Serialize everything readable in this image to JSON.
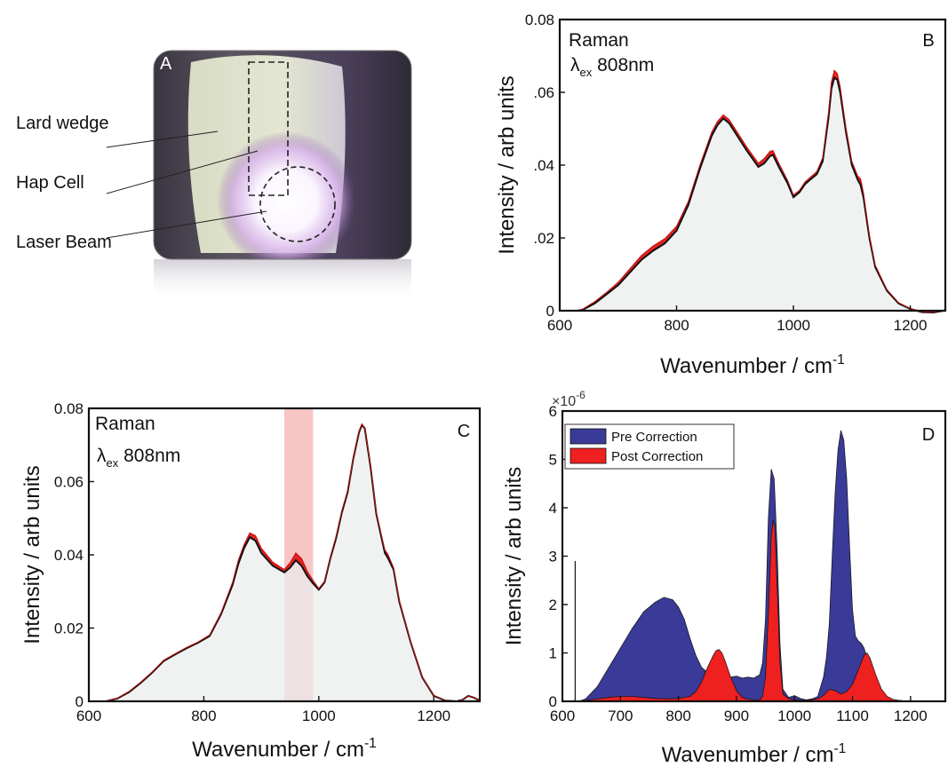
{
  "panel_a": {
    "letter": "A",
    "labels": [
      "Lard wedge",
      "Hap Cell",
      "Laser Beam"
    ]
  },
  "chart_data": [
    {
      "panel": "B",
      "type": "area",
      "annotation": [
        "Raman",
        "λ",
        "ex",
        " 808nm"
      ],
      "xlabel": "Wavenumber / cm",
      "xlabel_sup": "-1",
      "ylabel": "Intensity / arb units",
      "xlim": [
        600,
        1260
      ],
      "ylim": [
        0,
        0.08
      ],
      "xticks": [
        600,
        800,
        1000,
        1200
      ],
      "xtick_labels": [
        "600",
        "800",
        "1000",
        "1200"
      ],
      "yticks": [
        0,
        0.02,
        0.04,
        0.06,
        0.08
      ],
      "ytick_labels": [
        "0",
        ".02",
        ".04",
        ".06",
        "0.08"
      ],
      "x": [
        630,
        640,
        660,
        680,
        700,
        720,
        740,
        760,
        780,
        800,
        820,
        840,
        860,
        870,
        880,
        890,
        900,
        920,
        940,
        950,
        960,
        965,
        975,
        990,
        1000,
        1010,
        1020,
        1030,
        1040,
        1050,
        1060,
        1065,
        1070,
        1075,
        1080,
        1090,
        1100,
        1110,
        1115,
        1120,
        1130,
        1140,
        1160,
        1180,
        1200,
        1220,
        1240,
        1260
      ],
      "series": [
        {
          "values": [
            0,
            0.0003,
            0.002,
            0.0045,
            0.007,
            0.0105,
            0.014,
            0.0165,
            0.0185,
            0.022,
            0.029,
            0.039,
            0.048,
            0.051,
            0.0528,
            0.0515,
            0.049,
            0.044,
            0.0395,
            0.0405,
            0.0425,
            0.0428,
            0.0395,
            0.035,
            0.0312,
            0.0325,
            0.0348,
            0.0362,
            0.0375,
            0.041,
            0.053,
            0.061,
            0.064,
            0.0635,
            0.06,
            0.049,
            0.04,
            0.036,
            0.0345,
            0.031,
            0.02,
            0.012,
            0.0055,
            0.002,
            0.0005,
            -0.0004,
            -0.0005,
            0.0001
          ]
        },
        {
          "values": [
            0,
            0.0005,
            0.0025,
            0.005,
            0.0078,
            0.0115,
            0.0152,
            0.0178,
            0.0198,
            0.0232,
            0.03,
            0.04,
            0.049,
            0.052,
            0.0538,
            0.0525,
            0.05,
            0.045,
            0.0405,
            0.0418,
            0.0438,
            0.044,
            0.0405,
            0.0358,
            0.0318,
            0.033,
            0.0354,
            0.0368,
            0.0382,
            0.042,
            0.0545,
            0.0628,
            0.066,
            0.0652,
            0.0615,
            0.0502,
            0.041,
            0.037,
            0.0362,
            0.0322,
            0.0208,
            0.0125,
            0.0058,
            0.0022,
            0.0006,
            -0.0003,
            -0.0004,
            0.0002
          ]
        }
      ]
    },
    {
      "panel": "C",
      "type": "area",
      "annotation": [
        "Raman",
        "λ",
        "ex",
        " 808nm"
      ],
      "xlabel": "Wavenumber / cm",
      "xlabel_sup": "-1",
      "ylabel": "Intensity / arb units",
      "xlim": [
        600,
        1280
      ],
      "ylim": [
        0,
        0.08
      ],
      "xticks": [
        600,
        800,
        1000,
        1200
      ],
      "xtick_labels": [
        "600",
        "800",
        "1000",
        "1200"
      ],
      "yticks": [
        0,
        0.02,
        0.04,
        0.06,
        0.08
      ],
      "ytick_labels": [
        "0",
        "0.02",
        "0.04",
        "0.06",
        "0.08"
      ],
      "highlight_band": [
        940,
        990
      ],
      "x": [
        630,
        650,
        670,
        690,
        710,
        730,
        750,
        770,
        790,
        810,
        830,
        850,
        860,
        870,
        880,
        890,
        900,
        920,
        940,
        950,
        960,
        970,
        980,
        990,
        1000,
        1010,
        1020,
        1030,
        1040,
        1050,
        1060,
        1070,
        1075,
        1080,
        1090,
        1100,
        1110,
        1115,
        1120,
        1130,
        1140,
        1160,
        1180,
        1200,
        1220,
        1240,
        1250,
        1260,
        1270,
        1280
      ],
      "series": [
        {
          "values": [
            0,
            0.0008,
            0.0025,
            0.005,
            0.0078,
            0.011,
            0.0128,
            0.0145,
            0.016,
            0.0178,
            0.0238,
            0.0318,
            0.0375,
            0.0418,
            0.0448,
            0.0438,
            0.0405,
            0.037,
            0.0352,
            0.0365,
            0.0385,
            0.037,
            0.0342,
            0.0322,
            0.0305,
            0.0325,
            0.039,
            0.0445,
            0.0515,
            0.057,
            0.0663,
            0.0735,
            0.0755,
            0.0745,
            0.064,
            0.0512,
            0.044,
            0.0405,
            0.0392,
            0.036,
            0.0272,
            0.016,
            0.0065,
            0.0015,
            0.0002,
            0,
            0.0004,
            0.0015,
            0.001,
            0.0002
          ]
        },
        {
          "values": [
            0,
            0.0009,
            0.0027,
            0.0052,
            0.008,
            0.0112,
            0.013,
            0.0147,
            0.0162,
            0.0181,
            0.0242,
            0.0325,
            0.0385,
            0.0428,
            0.046,
            0.0452,
            0.0418,
            0.038,
            0.036,
            0.0378,
            0.0405,
            0.039,
            0.0355,
            0.033,
            0.0308,
            0.0328,
            0.0394,
            0.045,
            0.052,
            0.0575,
            0.0667,
            0.0738,
            0.0757,
            0.0747,
            0.0644,
            0.0516,
            0.0446,
            0.0413,
            0.0402,
            0.0365,
            0.0275,
            0.0162,
            0.0066,
            0.0016,
            0.0002,
            0,
            0.0004,
            0.0015,
            0.001,
            0.0002
          ]
        }
      ]
    },
    {
      "panel": "D",
      "type": "area",
      "xlabel": "Wavenumber / cm",
      "xlabel_sup": "-1",
      "ylabel": "Intensity / arb units",
      "y_multiplier": [
        "×10",
        "-6"
      ],
      "xlim": [
        600,
        1260
      ],
      "ylim": [
        0,
        6
      ],
      "xticks": [
        600,
        700,
        800,
        900,
        1000,
        1100,
        1200
      ],
      "xtick_labels": [
        "600",
        "700",
        "800",
        "900",
        "1000",
        "1100",
        "1200"
      ],
      "yticks": [
        0,
        1,
        2,
        3,
        4,
        5,
        6
      ],
      "ytick_labels": [
        "0",
        "1",
        "2",
        "3",
        "4",
        "5",
        "6"
      ],
      "legend_position": "top-left",
      "spike": {
        "x": 622,
        "y": 2.9
      },
      "series": [
        {
          "name": "Pre Correction",
          "color": "#3a3a98",
          "x": [
            628,
            640,
            660,
            680,
            700,
            720,
            740,
            760,
            775,
            790,
            800,
            810,
            820,
            830,
            840,
            850,
            860,
            870,
            880,
            890,
            900,
            910,
            920,
            930,
            940,
            945,
            950,
            955,
            960,
            965,
            970,
            975,
            980,
            990,
            1000,
            1010,
            1020,
            1030,
            1040,
            1050,
            1055,
            1060,
            1065,
            1070,
            1075,
            1080,
            1085,
            1090,
            1095,
            1100,
            1105,
            1110,
            1115,
            1120,
            1125,
            1130,
            1135,
            1140,
            1150,
            1160,
            1170,
            1180,
            1190,
            1200
          ],
          "values": [
            0,
            0.05,
            0.3,
            0.7,
            1.1,
            1.5,
            1.85,
            2.05,
            2.15,
            2.1,
            1.95,
            1.7,
            1.3,
            0.95,
            0.7,
            0.6,
            0.55,
            0.5,
            0.52,
            0.5,
            0.52,
            0.48,
            0.5,
            0.48,
            0.55,
            0.8,
            1.7,
            3.8,
            4.8,
            4.6,
            3.2,
            1.2,
            0.25,
            0.08,
            0.12,
            0.06,
            0.03,
            0.05,
            0.1,
            0.5,
            0.9,
            1.6,
            3.0,
            4.3,
            5.2,
            5.6,
            5.4,
            4.6,
            3.2,
            1.9,
            1.35,
            1.25,
            1.2,
            1.1,
            0.9,
            0.6,
            0.35,
            0.2,
            0.08,
            0.04,
            0.02,
            0.01,
            0.01,
            0
          ]
        },
        {
          "name": "Post Correction",
          "color": "#ee2020",
          "x": [
            628,
            640,
            660,
            680,
            700,
            720,
            740,
            760,
            780,
            800,
            820,
            830,
            840,
            850,
            860,
            865,
            870,
            875,
            880,
            890,
            900,
            910,
            920,
            930,
            940,
            945,
            950,
            955,
            960,
            963,
            966,
            970,
            975,
            980,
            990,
            1000,
            1010,
            1020,
            1030,
            1040,
            1050,
            1060,
            1070,
            1080,
            1090,
            1100,
            1110,
            1120,
            1125,
            1130,
            1140,
            1150,
            1160,
            1170,
            1180,
            1190,
            1200
          ],
          "values": [
            0,
            0.02,
            0.05,
            0.08,
            0.1,
            0.1,
            0.08,
            0.06,
            0.05,
            0.06,
            0.1,
            0.2,
            0.4,
            0.7,
            0.95,
            1.05,
            1.07,
            1.0,
            0.85,
            0.5,
            0.22,
            0.08,
            0.04,
            0.03,
            0.03,
            0.1,
            0.5,
            1.8,
            3.4,
            3.75,
            3.6,
            2.4,
            0.8,
            0.15,
            0.05,
            0.03,
            0.02,
            0.02,
            0.03,
            0.05,
            0.12,
            0.25,
            0.22,
            0.15,
            0.2,
            0.35,
            0.65,
            0.95,
            1.0,
            0.9,
            0.55,
            0.25,
            0.1,
            0.04,
            0.02,
            0.01,
            0
          ]
        }
      ]
    }
  ]
}
